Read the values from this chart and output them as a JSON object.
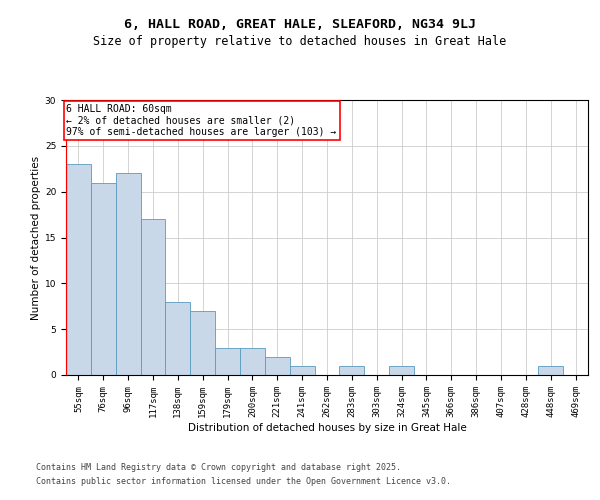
{
  "title": "6, HALL ROAD, GREAT HALE, SLEAFORD, NG34 9LJ",
  "subtitle": "Size of property relative to detached houses in Great Hale",
  "xlabel": "Distribution of detached houses by size in Great Hale",
  "ylabel": "Number of detached properties",
  "categories": [
    "55sqm",
    "76sqm",
    "96sqm",
    "117sqm",
    "138sqm",
    "159sqm",
    "179sqm",
    "200sqm",
    "221sqm",
    "241sqm",
    "262sqm",
    "283sqm",
    "303sqm",
    "324sqm",
    "345sqm",
    "366sqm",
    "386sqm",
    "407sqm",
    "428sqm",
    "448sqm",
    "469sqm"
  ],
  "values": [
    23,
    21,
    22,
    17,
    8,
    7,
    3,
    3,
    2,
    1,
    0,
    1,
    0,
    1,
    0,
    0,
    0,
    0,
    0,
    1,
    0
  ],
  "bar_color": "#c8d8e8",
  "bar_edge_color": "#5a9abf",
  "annotation_box_text": "6 HALL ROAD: 60sqm\n← 2% of detached houses are smaller (2)\n97% of semi-detached houses are larger (103) →",
  "annotation_box_color": "white",
  "annotation_box_edge_color": "red",
  "red_line_x": -0.5,
  "ylim": [
    0,
    30
  ],
  "yticks": [
    0,
    5,
    10,
    15,
    20,
    25,
    30
  ],
  "grid_color": "#cccccc",
  "background_color": "white",
  "footer_line1": "Contains HM Land Registry data © Crown copyright and database right 2025.",
  "footer_line2": "Contains public sector information licensed under the Open Government Licence v3.0.",
  "title_fontsize": 9.5,
  "subtitle_fontsize": 8.5,
  "axis_label_fontsize": 7.5,
  "tick_fontsize": 6.5,
  "annotation_fontsize": 7,
  "footer_fontsize": 6
}
